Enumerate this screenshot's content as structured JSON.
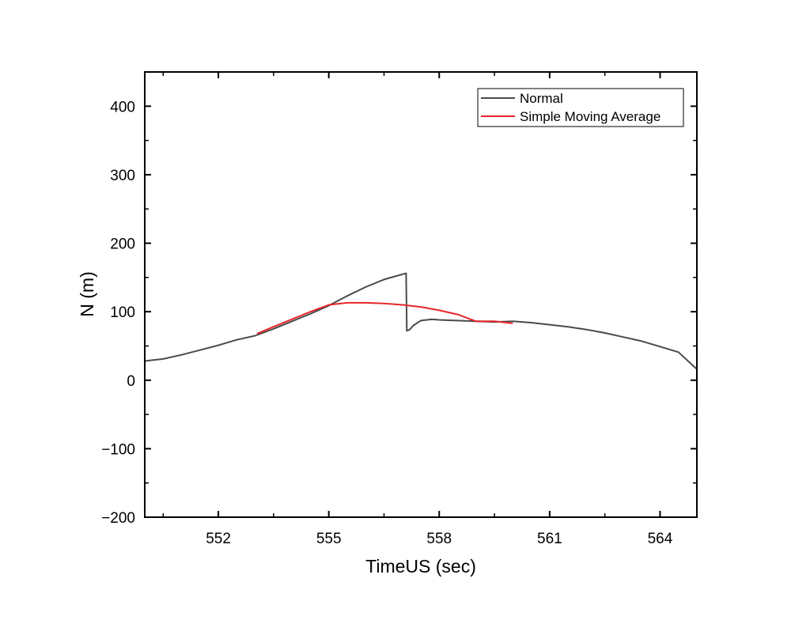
{
  "chart_data": {
    "type": "line",
    "title": "",
    "xlabel": "TimeUS (sec)",
    "ylabel": "N (m)",
    "xlim": [
      550,
      565
    ],
    "ylim": [
      -200,
      450
    ],
    "x_ticks": [
      552,
      555,
      558,
      561,
      564
    ],
    "x_tick_labels": [
      "552",
      "555",
      "558",
      "561",
      "564"
    ],
    "y_ticks": [
      -200,
      -100,
      0,
      100,
      200,
      300,
      400
    ],
    "y_tick_labels": [
      "−200",
      "−100",
      "0",
      "100",
      "200",
      "300",
      "400"
    ],
    "grid": false,
    "legend_position": "top-right",
    "series": [
      {
        "name": "Normal",
        "color": "#4a4a4a",
        "x": [
          550.0,
          550.5,
          551.0,
          551.5,
          552.0,
          552.5,
          553.0,
          553.5,
          554.0,
          554.5,
          555.0,
          555.5,
          556.0,
          556.5,
          557.1,
          557.12,
          557.2,
          557.3,
          557.5,
          557.8,
          558.0,
          558.5,
          559.0,
          559.5,
          560.0,
          560.5,
          561.0,
          561.5,
          562.0,
          562.5,
          563.0,
          563.5,
          564.0,
          564.5,
          565.0
        ],
        "y": [
          28,
          31,
          37,
          44,
          51,
          59,
          65,
          75,
          86,
          97,
          109,
          123,
          136,
          147,
          156,
          72,
          74,
          80,
          87,
          89,
          88,
          87,
          86,
          85,
          86,
          84,
          81,
          78,
          74,
          69,
          63,
          57,
          49,
          41,
          16
        ]
      },
      {
        "name": "Simple Moving Average",
        "color": "#e8262b",
        "x": [
          553.05,
          553.5,
          554.0,
          554.5,
          555.0,
          555.5,
          556.0,
          556.5,
          557.0,
          557.5,
          558.0,
          558.5,
          559.0,
          559.5,
          560.0
        ],
        "y": [
          68,
          78,
          89,
          100,
          110,
          113,
          113,
          112,
          110,
          107,
          102,
          96,
          86,
          86,
          83
        ]
      }
    ]
  }
}
